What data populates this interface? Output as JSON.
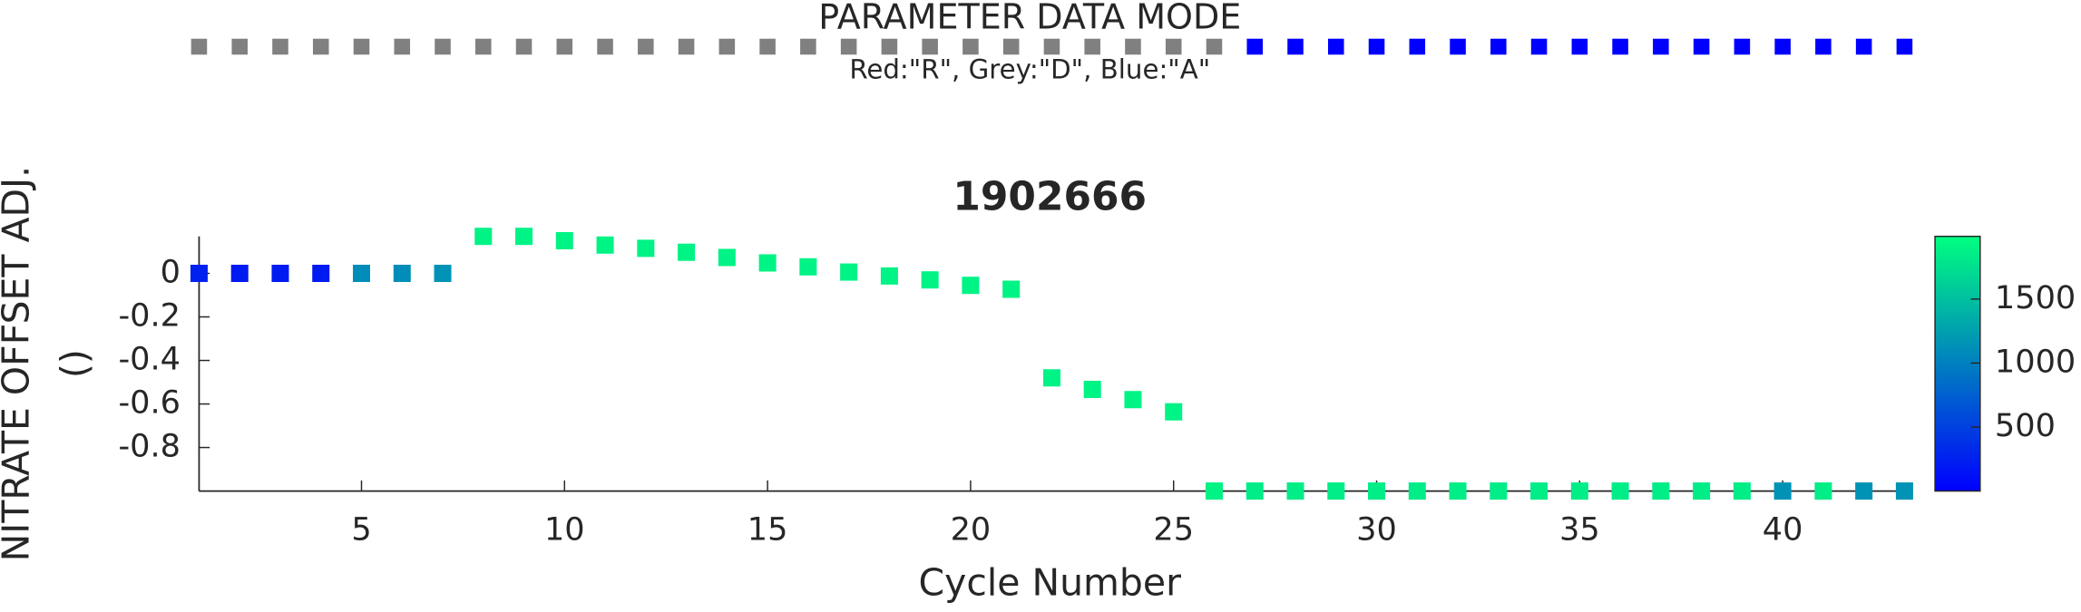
{
  "chart_data": {
    "type": "scatter",
    "mode_title": "PARAMETER DATA MODE",
    "mode_legend": "Red:\"R\", Grey:\"D\", Blue:\"A\"",
    "mode_colors": {
      "R": "#ff0000",
      "D": "#808080",
      "A": "#0000ff"
    },
    "data_mode": [
      "D",
      "D",
      "D",
      "D",
      "D",
      "D",
      "D",
      "D",
      "D",
      "D",
      "D",
      "D",
      "D",
      "D",
      "D",
      "D",
      "D",
      "D",
      "D",
      "D",
      "D",
      "D",
      "D",
      "D",
      "D",
      "D",
      "A",
      "A",
      "A",
      "A",
      "A",
      "A",
      "A",
      "A",
      "A",
      "A",
      "A",
      "A",
      "A",
      "A",
      "A",
      "A",
      "A"
    ],
    "title": "1902666",
    "xlabel": "Cycle Number",
    "ylabel": [
      "NITRATE OFFSET ADJ.",
      "()"
    ],
    "x": [
      1,
      2,
      3,
      4,
      5,
      6,
      7,
      8,
      9,
      10,
      11,
      12,
      13,
      14,
      15,
      16,
      17,
      18,
      19,
      20,
      21,
      22,
      23,
      24,
      25,
      26,
      27,
      28,
      29,
      30,
      31,
      32,
      33,
      34,
      35,
      36,
      37,
      38,
      39,
      40,
      41,
      42,
      43
    ],
    "values": [
      0,
      0,
      0,
      0,
      0,
      0,
      0,
      0.17,
      0.17,
      0.15,
      0.13,
      0.115,
      0.097,
      0.073,
      0.048,
      0.03,
      0.006,
      -0.012,
      -0.03,
      -0.055,
      -0.073,
      -0.48,
      -0.533,
      -0.58,
      -0.636,
      -1,
      -1,
      -1,
      -1,
      -1,
      -1,
      -1,
      -1,
      -1,
      -1,
      -1,
      -1,
      -1,
      -1,
      -1,
      -1,
      -1,
      -1
    ],
    "color_values": [
      250,
      200,
      200,
      200,
      1100,
      1100,
      1150,
      1900,
      1900,
      1900,
      1900,
      1900,
      1900,
      1900,
      1900,
      1900,
      1900,
      1900,
      1900,
      1900,
      1900,
      1900,
      1900,
      1900,
      1900,
      1900,
      1850,
      1850,
      1850,
      1850,
      1850,
      1850,
      1850,
      1850,
      1850,
      1850,
      1850,
      1850,
      1850,
      1150,
      1850,
      1150,
      1150
    ],
    "xlim": [
      1,
      43
    ],
    "xticks": [
      5,
      10,
      15,
      20,
      25,
      30,
      35,
      40
    ],
    "ylim": [
      -1,
      0.17
    ],
    "yticks": [
      0,
      -0.2,
      -0.4,
      -0.6,
      -0.8
    ],
    "clim": [
      0,
      1990
    ],
    "cticks": [
      500,
      1000,
      1500
    ],
    "colormap": "winter"
  }
}
